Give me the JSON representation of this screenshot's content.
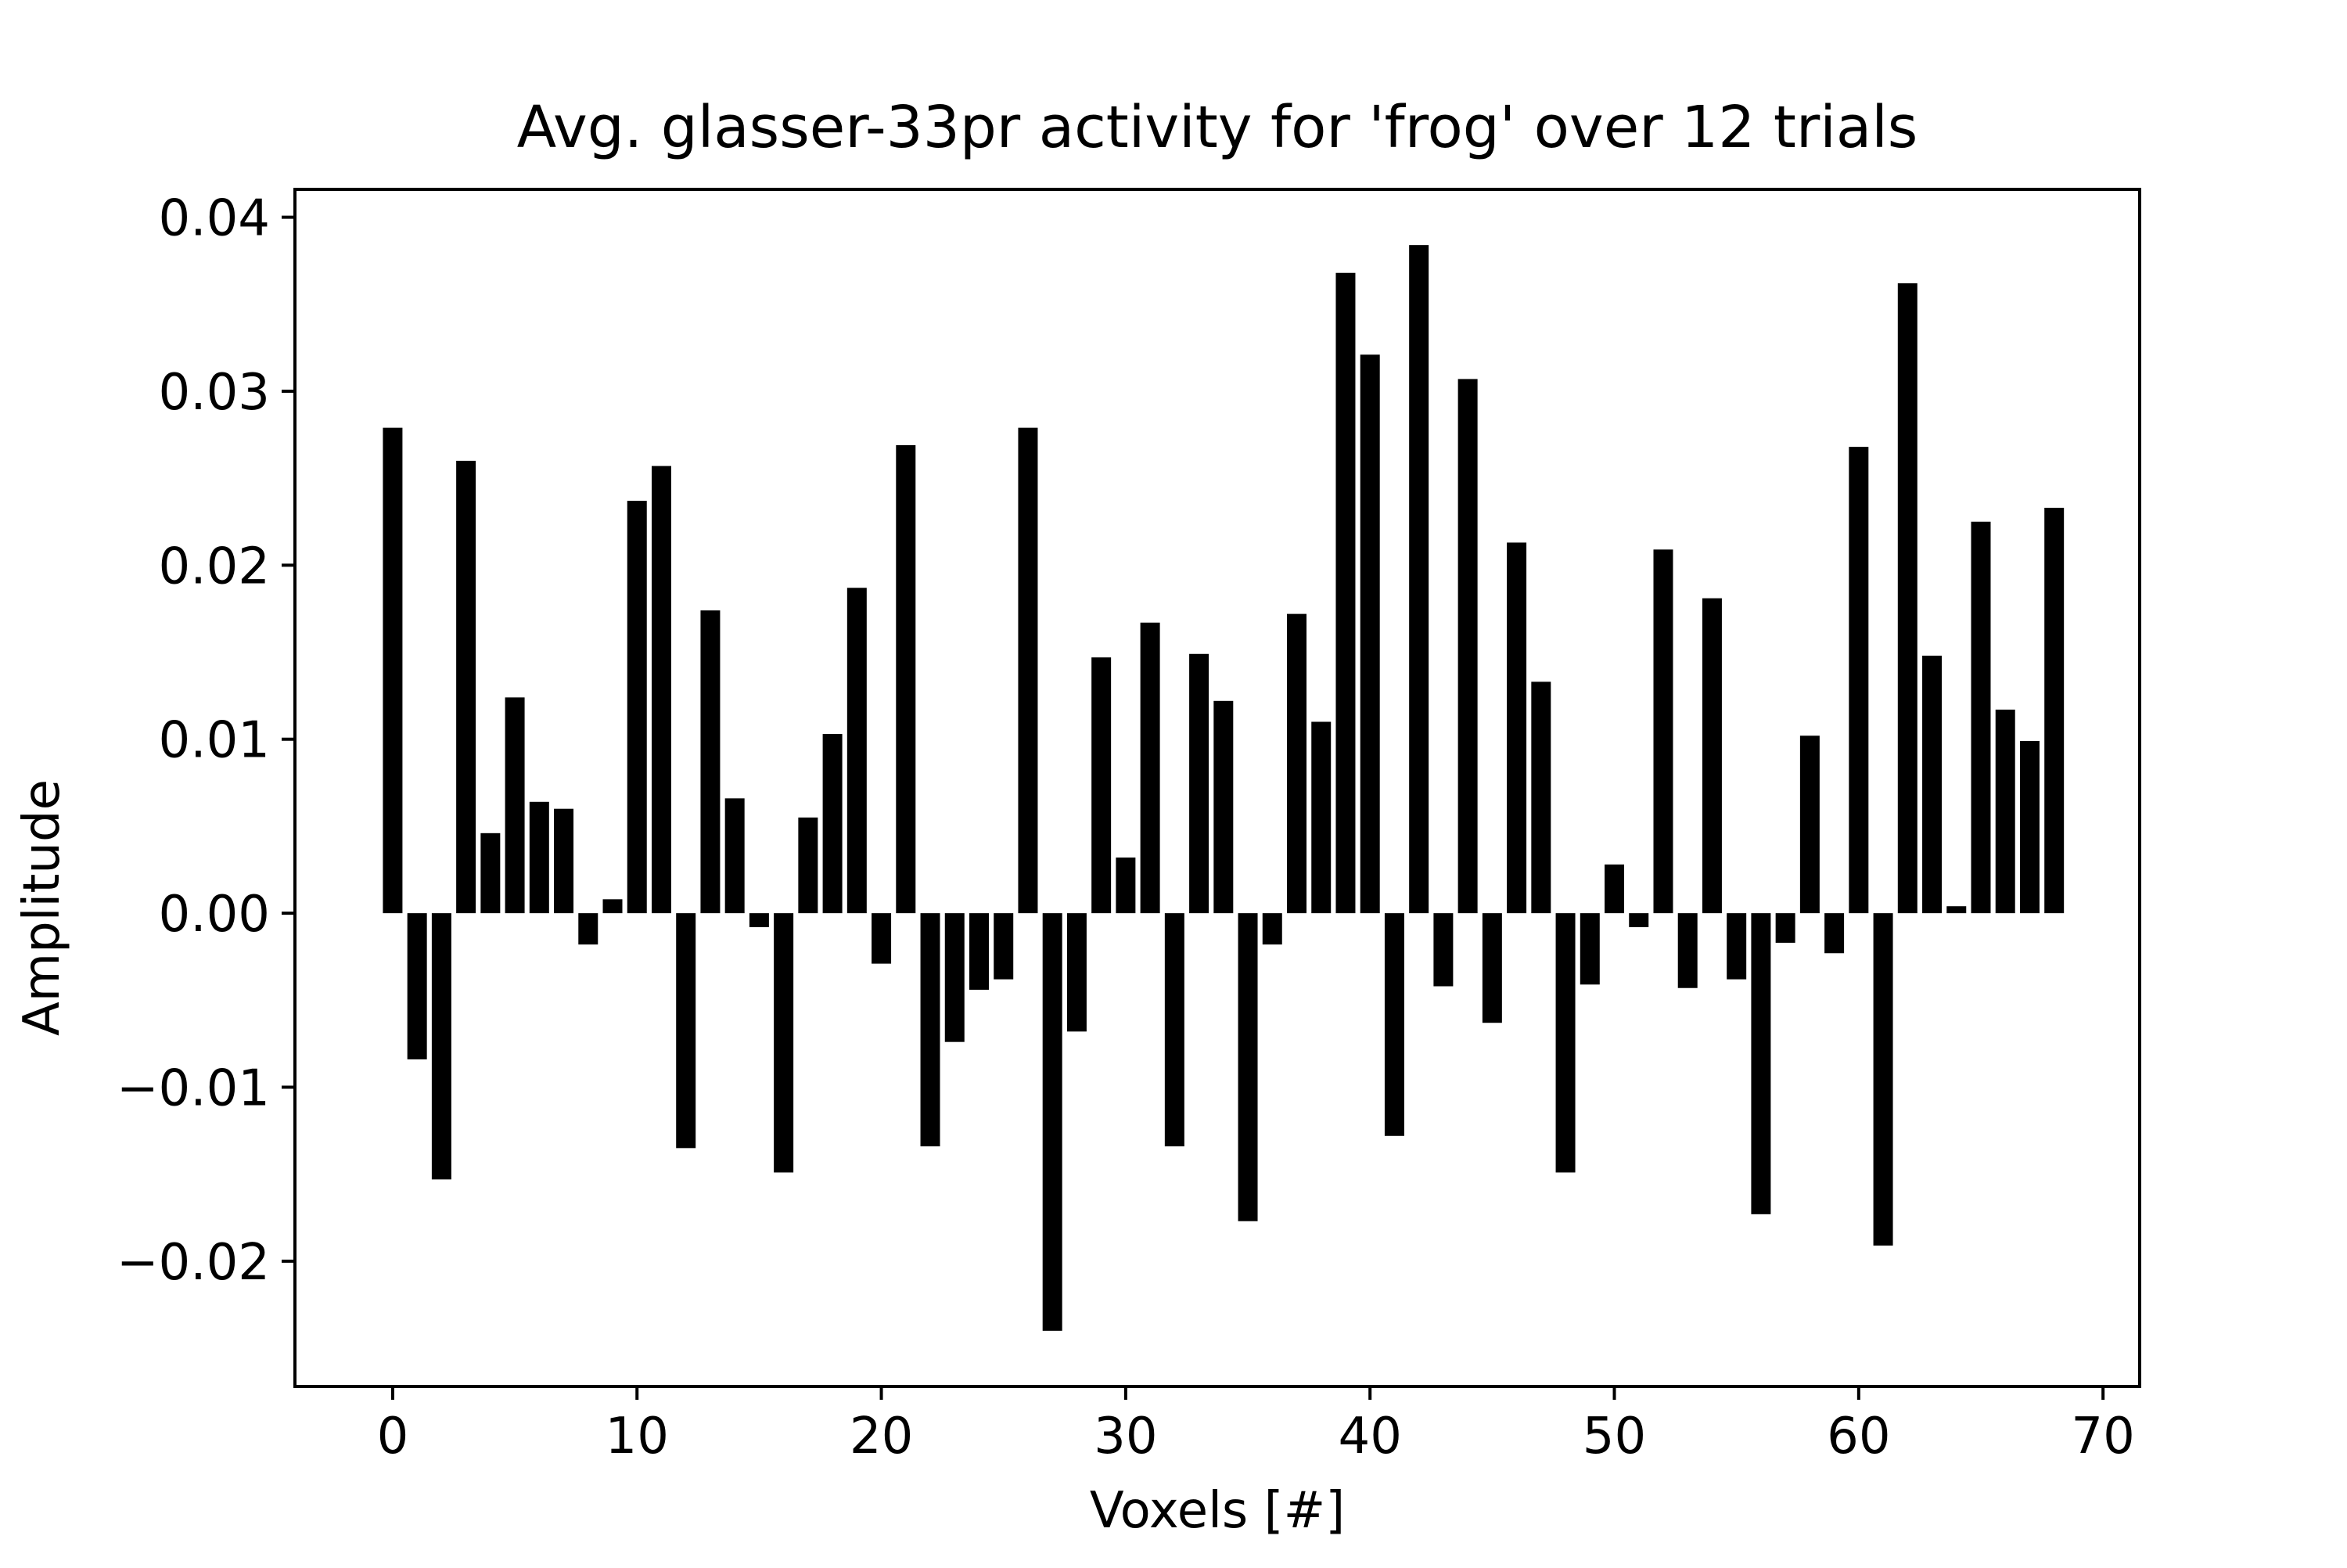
{
  "chart_data": {
    "type": "bar",
    "title": "Avg. glasser-33pr activity for 'frog' over 12 trials",
    "xlabel": "Voxels [#]",
    "ylabel": "Amplitude",
    "xlim": [
      -4,
      71.5
    ],
    "ylim": [
      -0.0272,
      0.0416
    ],
    "xticks": [
      0,
      10,
      20,
      30,
      40,
      50,
      60,
      70
    ],
    "xtick_labels": [
      "0",
      "10",
      "20",
      "30",
      "40",
      "50",
      "60",
      "70"
    ],
    "yticks": [
      -0.02,
      -0.01,
      0.0,
      0.01,
      0.02,
      0.03,
      0.04
    ],
    "ytick_labels": [
      "−0.02",
      "−0.01",
      "0.00",
      "0.01",
      "0.02",
      "0.03",
      "0.04"
    ],
    "grid": false,
    "bar_color": "#000000",
    "bar_width": 0.8,
    "x": [
      0,
      1,
      2,
      3,
      4,
      5,
      6,
      7,
      8,
      9,
      10,
      11,
      12,
      13,
      14,
      15,
      16,
      17,
      18,
      19,
      20,
      21,
      22,
      23,
      24,
      25,
      26,
      27,
      28,
      29,
      30,
      31,
      32,
      33,
      34,
      35,
      36,
      37,
      38,
      39,
      40,
      41,
      42,
      43,
      44,
      45,
      46,
      47,
      48,
      49,
      50,
      51,
      52,
      53,
      54,
      55,
      56,
      57,
      58,
      59,
      60,
      61,
      62,
      63,
      64,
      65,
      66,
      67,
      68
    ],
    "values": [
      0.0279,
      -0.0084,
      -0.0153,
      0.026,
      0.0046,
      0.0124,
      0.0064,
      0.006,
      -0.0018,
      0.0008,
      0.0237,
      0.0257,
      -0.0135,
      0.0174,
      0.0066,
      -0.0008,
      -0.0149,
      0.0055,
      0.0103,
      0.0187,
      -0.0029,
      0.0269,
      -0.0134,
      -0.0074,
      -0.0044,
      -0.0038,
      0.0279,
      -0.024,
      -0.0068,
      0.0147,
      0.0032,
      0.0167,
      -0.0134,
      0.0149,
      0.0122,
      -0.0177,
      -0.0018,
      0.0172,
      0.011,
      0.0368,
      0.0321,
      -0.0128,
      0.0384,
      -0.0042,
      0.0307,
      -0.0063,
      0.0213,
      0.0133,
      -0.0149,
      -0.0041,
      0.0028,
      -0.0008,
      0.0209,
      -0.0043,
      0.0181,
      -0.0038,
      -0.0173,
      -0.0017,
      0.0102,
      -0.0023,
      0.0268,
      -0.0191,
      0.0362,
      0.0148,
      0.0004,
      0.0225,
      0.0117,
      0.0099,
      0.0233
    ]
  }
}
